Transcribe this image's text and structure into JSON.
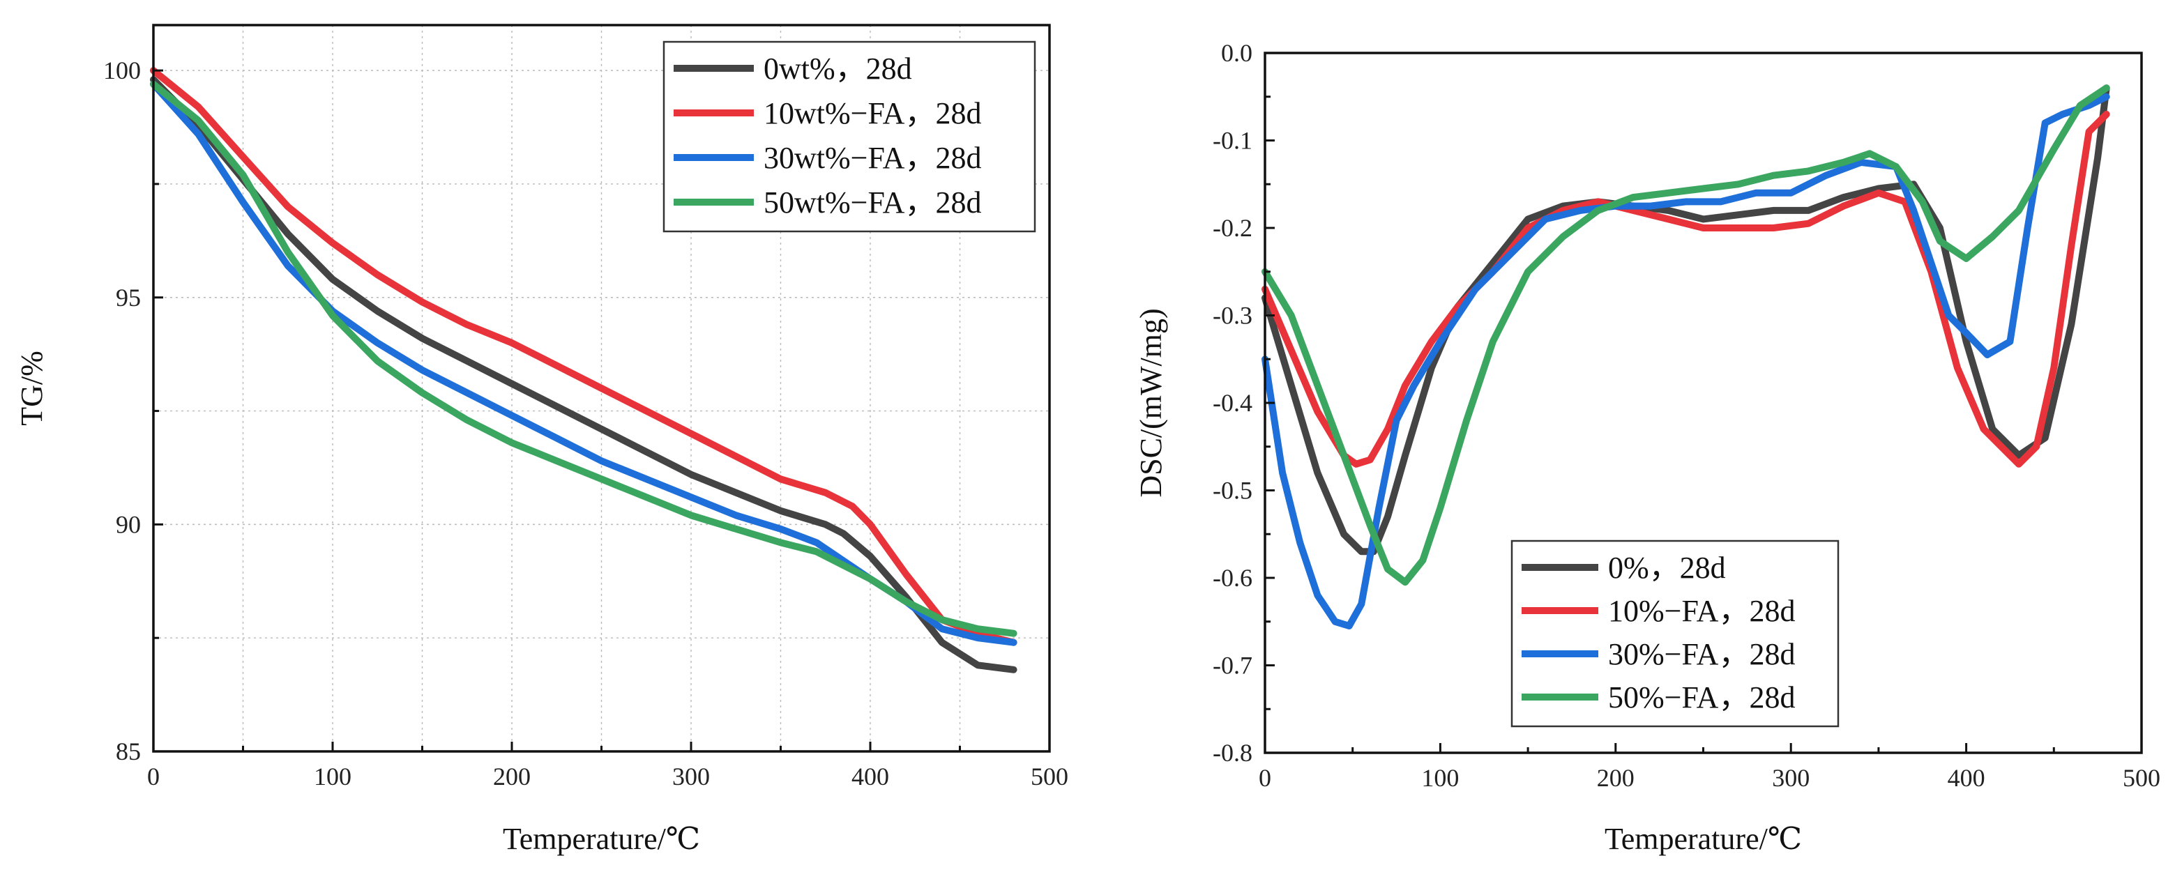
{
  "colors": {
    "dark": "#444444",
    "red": "#e8333a",
    "blue": "#1e6fd9",
    "green": "#3aa660"
  },
  "chart_data": [
    {
      "type": "line",
      "ylabel": "TG/%",
      "xlabel": "Temperature/℃",
      "xlim": [
        0,
        500
      ],
      "ylim": [
        85,
        101
      ],
      "xticks": [
        0,
        100,
        200,
        300,
        400,
        500
      ],
      "xtick_labels": [
        "0",
        "100",
        "200",
        "300",
        "400",
        "500"
      ],
      "yticks": [
        85,
        90,
        95,
        100
      ],
      "ytick_labels": [
        "85",
        "90",
        "95",
        "100"
      ],
      "grid": true,
      "legend_position": "top-right",
      "series": [
        {
          "name": "0wt%，28d",
          "color": "dark",
          "x": [
            0,
            25,
            50,
            75,
            100,
            125,
            150,
            175,
            200,
            225,
            250,
            275,
            300,
            325,
            350,
            375,
            385,
            400,
            420,
            440,
            460,
            480
          ],
          "y": [
            99.8,
            98.8,
            97.6,
            96.4,
            95.4,
            94.7,
            94.1,
            93.6,
            93.1,
            92.6,
            92.1,
            91.6,
            91.1,
            90.7,
            90.3,
            90.0,
            89.8,
            89.3,
            88.4,
            87.4,
            86.9,
            86.8
          ]
        },
        {
          "name": "10wt%−FA，28d",
          "color": "red",
          "x": [
            0,
            25,
            50,
            75,
            100,
            125,
            150,
            175,
            200,
            225,
            250,
            275,
            300,
            325,
            350,
            375,
            390,
            400,
            420,
            440,
            460,
            480
          ],
          "y": [
            100.0,
            99.2,
            98.1,
            97.0,
            96.2,
            95.5,
            94.9,
            94.4,
            94.0,
            93.5,
            93.0,
            92.5,
            92.0,
            91.5,
            91.0,
            90.7,
            90.4,
            90.0,
            88.9,
            87.9,
            87.6,
            87.4
          ]
        },
        {
          "name": "30wt%−FA，28d",
          "color": "blue",
          "x": [
            0,
            25,
            50,
            75,
            100,
            125,
            150,
            175,
            200,
            225,
            250,
            275,
            300,
            325,
            350,
            370,
            385,
            400,
            420,
            440,
            460,
            480
          ],
          "y": [
            99.7,
            98.6,
            97.1,
            95.7,
            94.7,
            94.0,
            93.4,
            92.9,
            92.4,
            91.9,
            91.4,
            91.0,
            90.6,
            90.2,
            89.9,
            89.6,
            89.2,
            88.8,
            88.3,
            87.7,
            87.5,
            87.4
          ]
        },
        {
          "name": "50wt%−FA，28d",
          "color": "green",
          "x": [
            0,
            25,
            50,
            75,
            100,
            125,
            150,
            175,
            200,
            225,
            250,
            275,
            300,
            325,
            350,
            370,
            385,
            400,
            420,
            440,
            460,
            480
          ],
          "y": [
            99.7,
            98.9,
            97.7,
            96.0,
            94.6,
            93.6,
            92.9,
            92.3,
            91.8,
            91.4,
            91.0,
            90.6,
            90.2,
            89.9,
            89.6,
            89.4,
            89.1,
            88.8,
            88.3,
            87.9,
            87.7,
            87.6
          ]
        }
      ]
    },
    {
      "type": "line",
      "ylabel": "DSC/(mW/mg)",
      "xlabel": "Temperature/℃",
      "xlim": [
        0,
        500
      ],
      "ylim": [
        -0.8,
        0.0
      ],
      "xticks": [
        0,
        100,
        200,
        300,
        400,
        500
      ],
      "xtick_labels": [
        "0",
        "100",
        "200",
        "300",
        "400",
        "500"
      ],
      "yticks": [
        -0.8,
        -0.7,
        -0.6,
        -0.5,
        -0.4,
        -0.3,
        -0.2,
        -0.1,
        0.0
      ],
      "ytick_labels": [
        "-0.8",
        "-0.7",
        "-0.6",
        "-0.5",
        "-0.4",
        "-0.3",
        "-0.2",
        "-0.1",
        "0.0"
      ],
      "grid": false,
      "legend_position": "bottom-center",
      "series": [
        {
          "name": "0%，28d",
          "color": "dark",
          "x": [
            0,
            15,
            30,
            45,
            55,
            62,
            70,
            80,
            95,
            110,
            130,
            150,
            170,
            190,
            210,
            230,
            250,
            270,
            290,
            310,
            330,
            350,
            370,
            385,
            400,
            415,
            430,
            445,
            460,
            475,
            480
          ],
          "y": [
            -0.28,
            -0.38,
            -0.48,
            -0.55,
            -0.57,
            -0.57,
            -0.53,
            -0.46,
            -0.36,
            -0.29,
            -0.24,
            -0.19,
            -0.175,
            -0.17,
            -0.175,
            -0.18,
            -0.19,
            -0.185,
            -0.18,
            -0.18,
            -0.165,
            -0.155,
            -0.15,
            -0.2,
            -0.33,
            -0.43,
            -0.46,
            -0.44,
            -0.31,
            -0.12,
            -0.04
          ]
        },
        {
          "name": "10%−FA，28d",
          "color": "red",
          "x": [
            0,
            15,
            30,
            45,
            52,
            60,
            70,
            80,
            95,
            110,
            130,
            150,
            170,
            190,
            210,
            230,
            250,
            270,
            290,
            310,
            330,
            350,
            365,
            380,
            395,
            410,
            430,
            440,
            450,
            460,
            470,
            480
          ],
          "y": [
            -0.27,
            -0.34,
            -0.41,
            -0.46,
            -0.47,
            -0.465,
            -0.43,
            -0.38,
            -0.33,
            -0.29,
            -0.25,
            -0.2,
            -0.18,
            -0.17,
            -0.18,
            -0.19,
            -0.2,
            -0.2,
            -0.2,
            -0.195,
            -0.175,
            -0.16,
            -0.17,
            -0.25,
            -0.36,
            -0.43,
            -0.47,
            -0.45,
            -0.36,
            -0.22,
            -0.09,
            -0.07
          ]
        },
        {
          "name": "30%−FA，28d",
          "color": "blue",
          "x": [
            0,
            10,
            20,
            30,
            40,
            48,
            55,
            65,
            75,
            85,
            100,
            120,
            140,
            160,
            180,
            200,
            220,
            240,
            260,
            280,
            300,
            320,
            340,
            360,
            370,
            380,
            390,
            400,
            412,
            425,
            435,
            445,
            455,
            470,
            480
          ],
          "y": [
            -0.35,
            -0.48,
            -0.56,
            -0.62,
            -0.65,
            -0.655,
            -0.63,
            -0.52,
            -0.42,
            -0.38,
            -0.33,
            -0.27,
            -0.23,
            -0.19,
            -0.18,
            -0.175,
            -0.175,
            -0.17,
            -0.17,
            -0.16,
            -0.16,
            -0.14,
            -0.125,
            -0.13,
            -0.18,
            -0.24,
            -0.3,
            -0.32,
            -0.345,
            -0.33,
            -0.2,
            -0.08,
            -0.07,
            -0.06,
            -0.05
          ]
        },
        {
          "name": "50%−FA，28d",
          "color": "green",
          "x": [
            0,
            15,
            30,
            45,
            60,
            70,
            80,
            90,
            100,
            115,
            130,
            150,
            170,
            190,
            210,
            230,
            250,
            270,
            290,
            310,
            330,
            345,
            360,
            375,
            385,
            400,
            415,
            430,
            450,
            465,
            480
          ],
          "y": [
            -0.25,
            -0.3,
            -0.38,
            -0.46,
            -0.54,
            -0.59,
            -0.605,
            -0.58,
            -0.52,
            -0.42,
            -0.33,
            -0.25,
            -0.21,
            -0.18,
            -0.165,
            -0.16,
            -0.155,
            -0.15,
            -0.14,
            -0.135,
            -0.125,
            -0.115,
            -0.13,
            -0.17,
            -0.215,
            -0.235,
            -0.21,
            -0.18,
            -0.11,
            -0.06,
            -0.04
          ]
        }
      ]
    }
  ]
}
